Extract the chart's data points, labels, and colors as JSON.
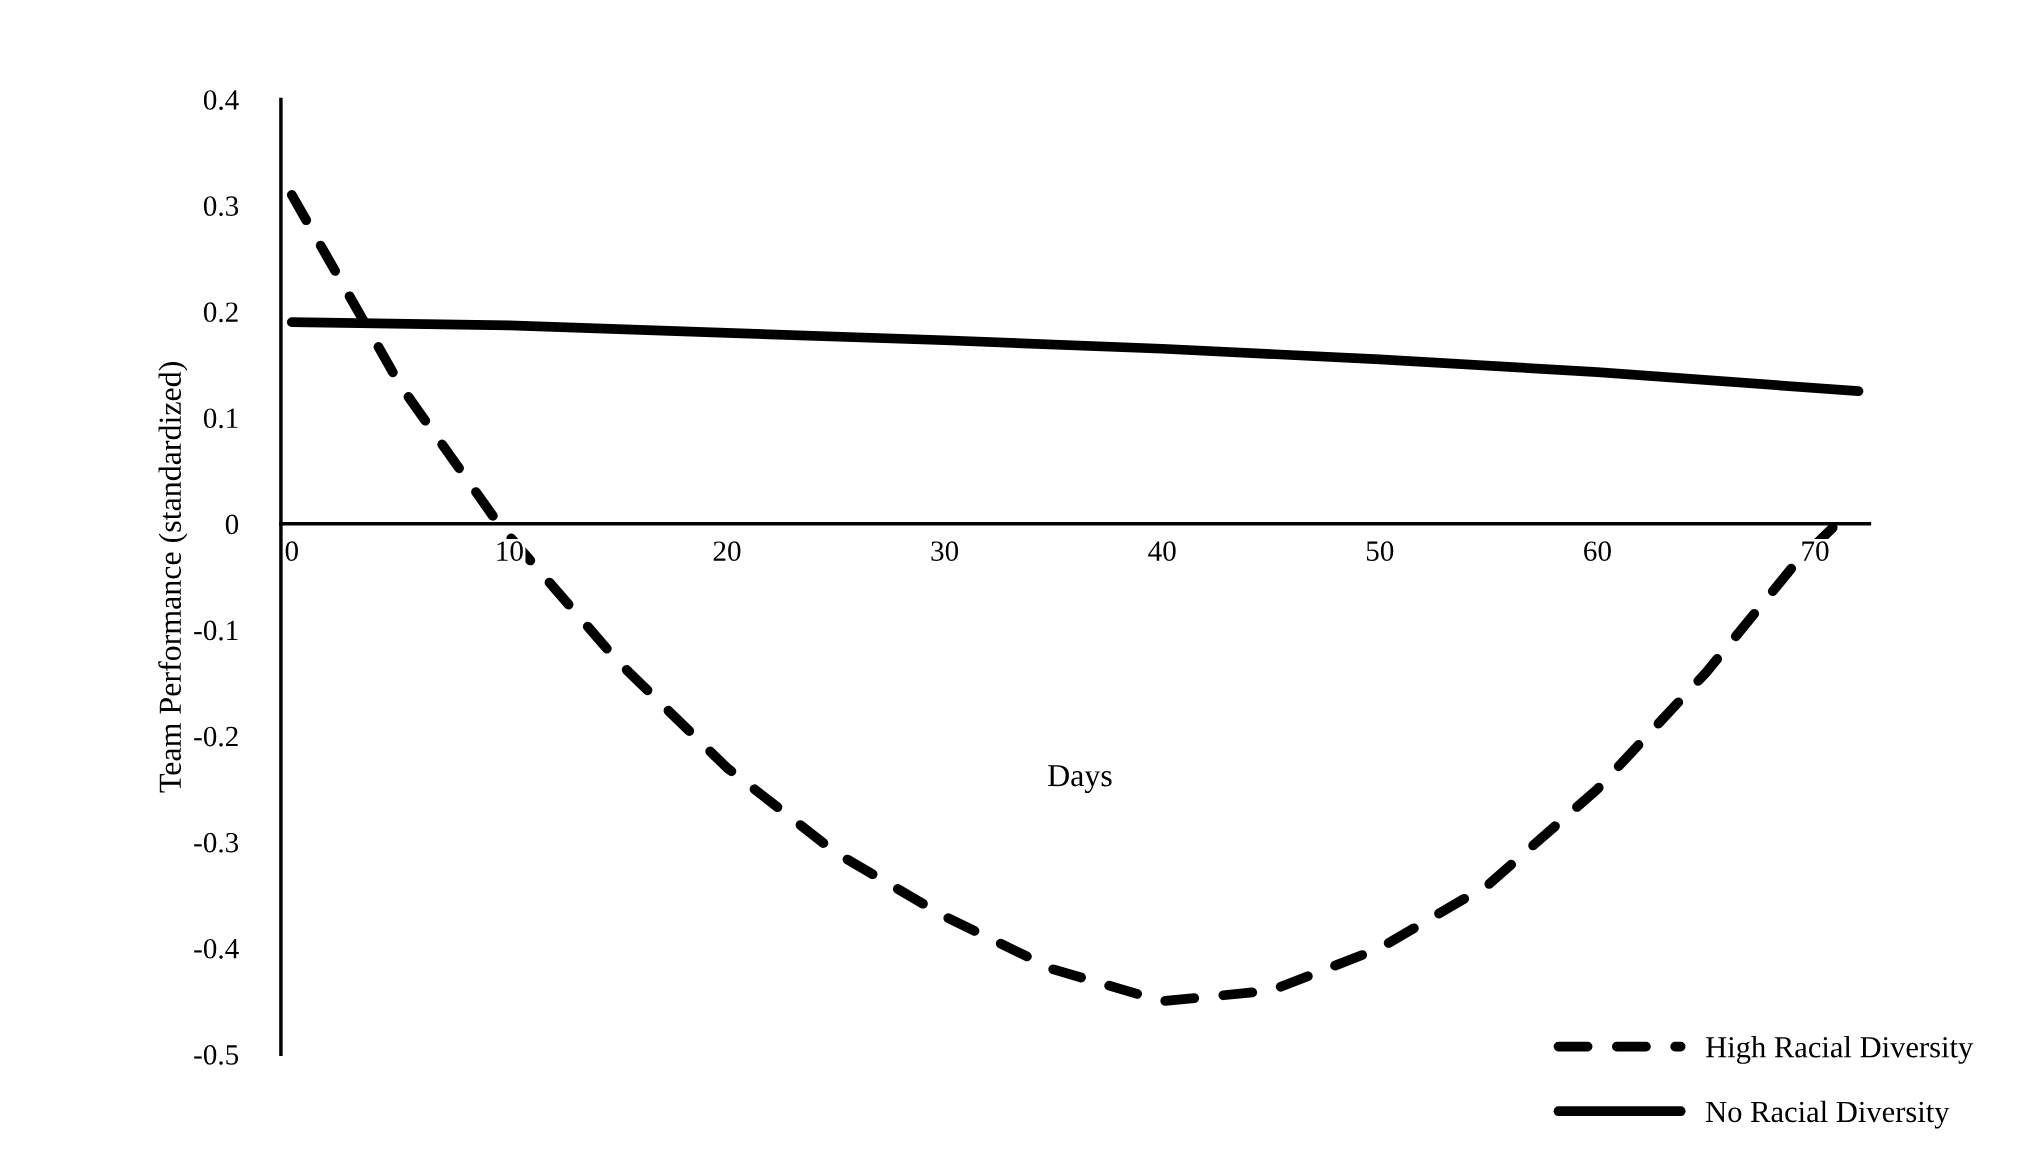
{
  "chart_data": {
    "type": "line",
    "xlabel": "Days",
    "ylabel": "Team Performance (standardized)",
    "xlim": [
      -0.5,
      72.5
    ],
    "xticks": [
      {
        "value": 0,
        "label": "0"
      },
      10,
      20,
      30,
      40,
      50,
      60,
      70
    ],
    "ylim": [
      -0.5,
      0.4
    ],
    "yticks": [
      -0.5,
      -0.4,
      -0.3,
      -0.2,
      -0.1,
      0,
      0.1,
      0.2,
      0.3,
      0.4
    ],
    "grid": false,
    "legend": "bottom right",
    "marker": "none",
    "series": [
      {
        "name": "High Racial Diversity",
        "color": "#000000",
        "line_style": "dashed",
        "x": [
          0,
          5,
          9.5,
          15,
          20,
          25,
          30,
          35,
          40,
          45,
          50,
          55,
          60,
          65,
          69,
          71.5
        ],
        "values": [
          0.31,
          0.13,
          0,
          -0.13,
          -0.23,
          -0.31,
          -0.37,
          -0.42,
          -0.45,
          -0.44,
          -0.4,
          -0.34,
          -0.25,
          -0.14,
          -0.04,
          0.01
        ]
      },
      {
        "name": "No Racial Diversity",
        "color": "#000000",
        "line_style": "solid",
        "x": [
          0,
          10,
          20,
          30,
          40,
          50,
          60,
          72
        ],
        "values": [
          0.19,
          0.187,
          0.18,
          0.173,
          0.165,
          0.155,
          0.143,
          0.125
        ]
      }
    ]
  }
}
